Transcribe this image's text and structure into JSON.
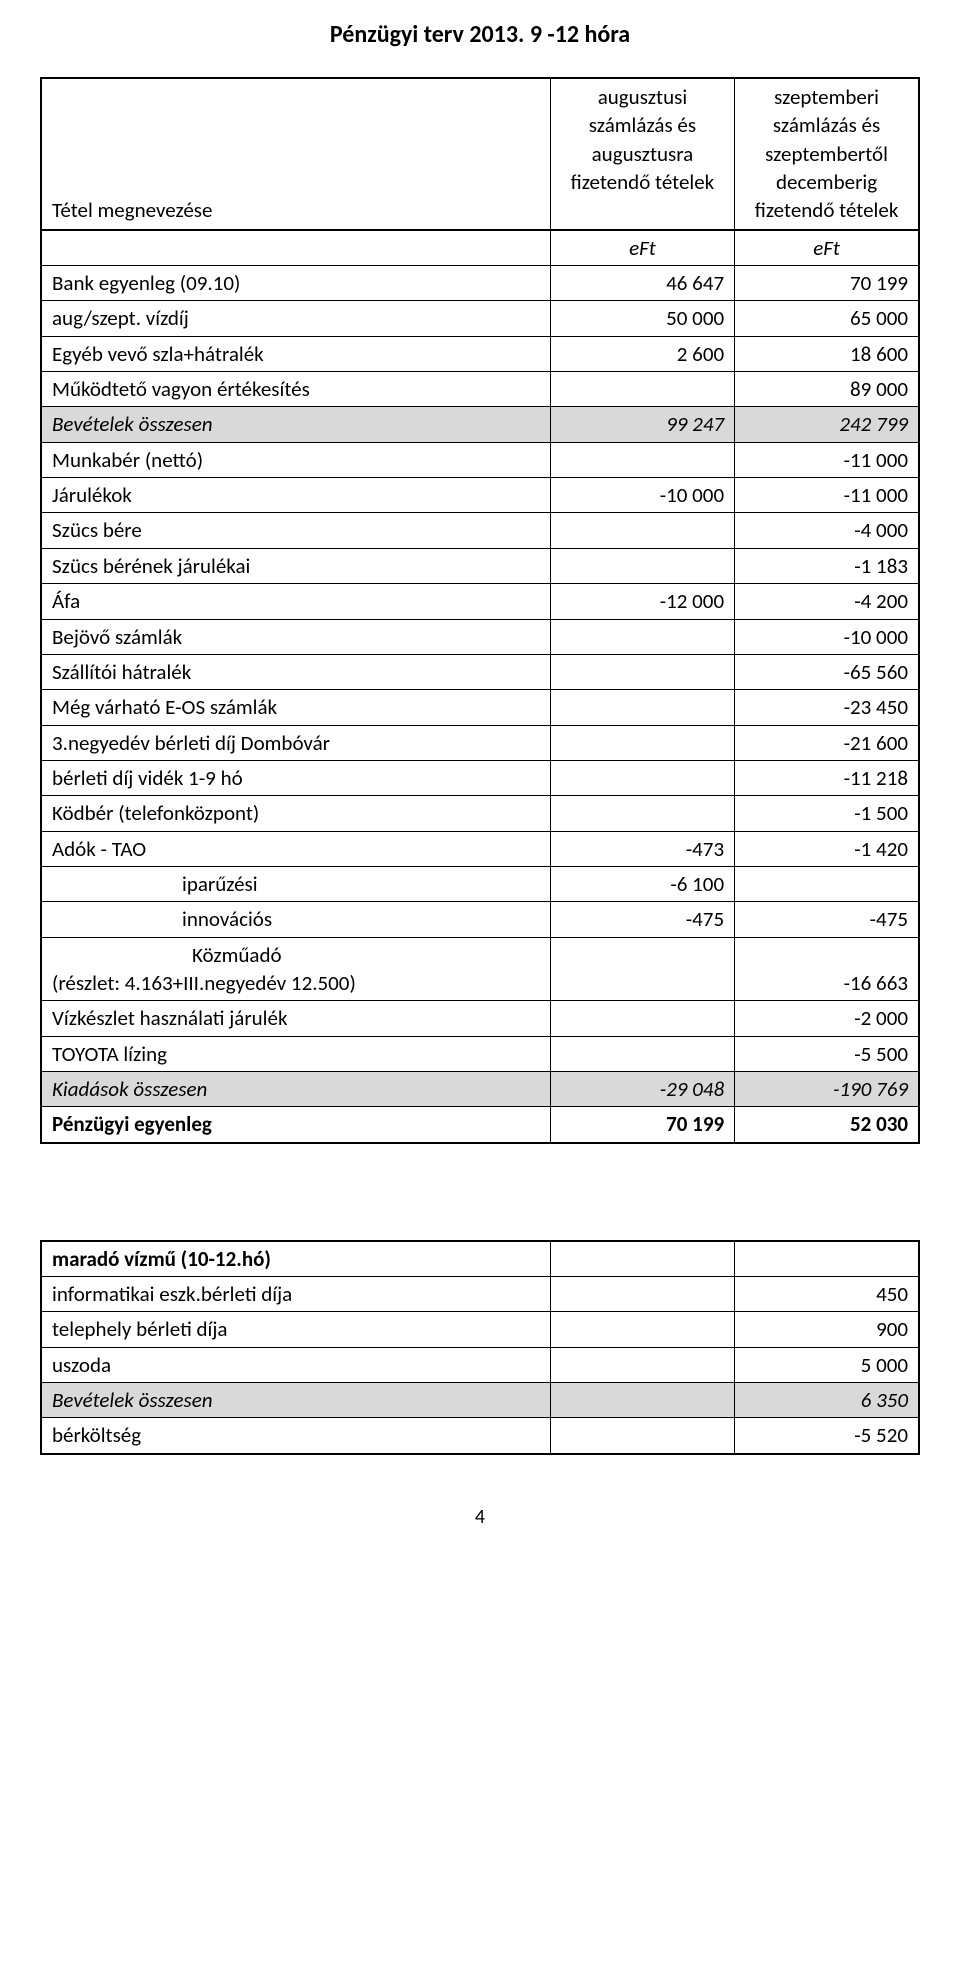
{
  "title": "Pénzügyi terv 2013. 9 -12 hóra",
  "header": {
    "col0": "Tétel megnevezése",
    "col1": "augusztusi számlázás és augusztusra fizetendő tételek",
    "col2": "szeptemberi számlázás és szeptembertől decemberig fizetendő tételek",
    "unit": "eFt"
  },
  "rows": {
    "bank_egyenleg_label": "Bank egyenleg (09.10)",
    "bank_egyenleg_c1": "46 647",
    "bank_egyenleg_c2": "70 199",
    "vizdij_label": "aug/szept. vízdíj",
    "vizdij_c1": "50 000",
    "vizdij_c2": "65 000",
    "egyeb_label": "Egyéb vevő szla+hátralék",
    "egyeb_c1": "2 600",
    "egyeb_c2": "18 600",
    "mukodteto_label": "Működtető vagyon értékesítés",
    "mukodteto_c1": "",
    "mukodteto_c2": "89 000",
    "bev_ossz_label": "Bevételek összesen",
    "bev_ossz_c1": "99 247",
    "bev_ossz_c2": "242 799",
    "munkaber_label": "Munkabér (nettó)",
    "munkaber_c2": "-11 000",
    "jarulekok_label": "Járulékok",
    "jarulekok_c1": "-10 000",
    "jarulekok_c2": "-11 000",
    "szucs_bere_label": "Szücs bére",
    "szucs_bere_c2": "-4 000",
    "szucs_jar_label": "Szücs bérének járulékai",
    "szucs_jar_c2": "-1 183",
    "afa_label": "Áfa",
    "afa_c1": "-12 000",
    "afa_c2": "-4 200",
    "bejovo_label": "Bejövő számlák",
    "bejovo_c2": "-10 000",
    "szallitoi_label": "Szállítói hátralék",
    "szallitoi_c2": "-65 560",
    "eos_label": "Még várható E-OS számlák",
    "eos_c2": "-23 450",
    "dombovar_label": "3.negyedév bérleti díj Dombóvár",
    "dombovar_c2": "-21 600",
    "videk_label": "bérleti díj vidék 1-9 hó",
    "videk_c2": "-11 218",
    "kodber_label": "Ködbér (telefonközpont)",
    "kodber_c2": "-1 500",
    "adok_tao_label": "Adók   -    TAO",
    "adok_tao_c1": "-473",
    "adok_tao_c2": "-1 420",
    "iparuzesi_label": "iparűzési",
    "iparuzesi_c1": "-6 100",
    "innovacios_label": "innovációs",
    "innovacios_c1": "-475",
    "innovacios_c2": "-475",
    "kozmuado_label1": "Közműadó",
    "kozmuado_label2": "(részlet: 4.163+III.negyedév 12.500)",
    "kozmuado_c2": "-16 663",
    "vizkeszlet_label": "Vízkészlet használati járulék",
    "vizkeszlet_c2": "-2 000",
    "toyota_label": "TOYOTA lízing",
    "toyota_c2": "-5 500",
    "kiad_ossz_label": "Kiadások összesen",
    "kiad_ossz_c1": "-29 048",
    "kiad_ossz_c2": "-190 769",
    "penz_egy_label": "Pénzügyi egyenleg",
    "penz_egy_c1": "70 199",
    "penz_egy_c2": "52 030"
  },
  "bottom": {
    "heading": "maradó vízmű (10-12.hó)",
    "informatikai_label": "informatikai eszk.bérleti díja",
    "informatikai_val": "450",
    "telephely_label": "telephely bérleti díja",
    "telephely_val": "900",
    "uszoda_label": "uszoda",
    "uszoda_val": "5 000",
    "bev_ossz_label": "Bevételek összesen",
    "bev_ossz_val": "6 350",
    "berkoltseg_label": "bérköltség",
    "berkoltseg_val": "-5 520"
  },
  "page_number": "4"
}
